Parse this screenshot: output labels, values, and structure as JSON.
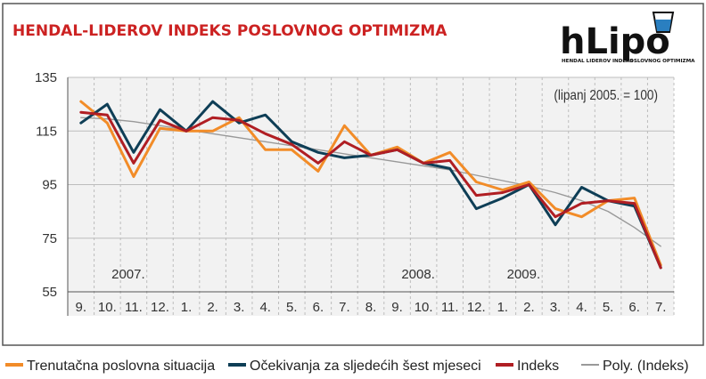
{
  "title": "HENDAL-LIDEROV INDEKS POSLOVNOG OPTIMIZMA",
  "colors": {
    "title": "#cc2222",
    "frame": "#555555",
    "plot_bg": "#f2f2f2",
    "grid": "#bdbdbd"
  },
  "logo": {
    "word": "hLipo",
    "subtitle_left": "HENDAL LIDEROV INDEKS",
    "subtitle_right": "POSLOVNOG OPTIMIZMA"
  },
  "chart_data": {
    "type": "line",
    "annotation": "(lipanj 2005. = 100)",
    "categories": [
      "9.",
      "10.",
      "11.",
      "12.",
      "1.",
      "2.",
      "3.",
      "4.",
      "5.",
      "6.",
      "7.",
      "8.",
      "9.",
      "10.",
      "11.",
      "12.",
      "1.",
      "2.",
      "3.",
      "4.",
      "5.",
      "6.",
      "7."
    ],
    "year_labels": [
      {
        "label": "2007.",
        "category_index": 2
      },
      {
        "label": "2008.",
        "category_index": 13
      },
      {
        "label": "2009.",
        "category_index": 17
      }
    ],
    "ylim": [
      55,
      135
    ],
    "yticks": [
      55,
      75,
      95,
      115,
      135
    ],
    "grid": true,
    "legend_position": "bottom",
    "series": [
      {
        "name": "Trenutačna poslovna situacija",
        "color": "#f28c28",
        "dashed": false,
        "values": [
          126,
          118,
          98,
          116,
          115,
          115,
          120,
          108,
          108,
          100,
          117,
          106,
          109,
          103,
          107,
          96,
          93,
          96,
          86,
          83,
          89,
          90,
          65
        ]
      },
      {
        "name": "Očekivanja za sljedećih šest mjeseci",
        "color": "#0e3e56",
        "dashed": false,
        "values": [
          118,
          125,
          107,
          123,
          115,
          126,
          118,
          121,
          111,
          107,
          105,
          106,
          108,
          103,
          101,
          86,
          90,
          95,
          80,
          94,
          89,
          87,
          64
        ]
      },
      {
        "name": "Indeks",
        "color": "#b01e23",
        "dashed": false,
        "values": [
          122,
          121,
          103,
          119,
          115,
          120,
          119,
          114,
          110,
          103,
          111,
          106,
          108,
          103,
          104,
          91,
          92,
          95,
          83,
          88,
          89,
          88,
          64
        ]
      },
      {
        "name": "Poly. (Indeks)",
        "color": "#999999",
        "dashed": false,
        "values": [
          120,
          119.5,
          118.5,
          117,
          115.5,
          114,
          112.5,
          111,
          109.5,
          108,
          106.5,
          105,
          103.5,
          102,
          100.5,
          98.5,
          96.5,
          94.5,
          92,
          89,
          85,
          79,
          72
        ]
      }
    ]
  }
}
